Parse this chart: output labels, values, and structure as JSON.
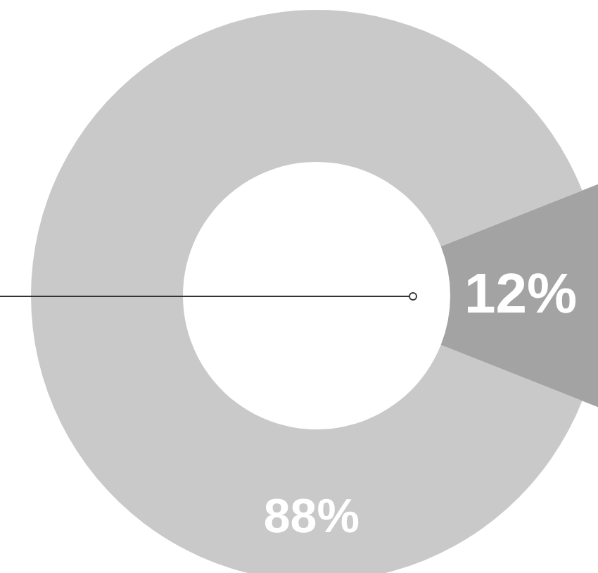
{
  "chart_data": {
    "type": "donut",
    "categories": [
      null,
      null
    ],
    "values": [
      88,
      12
    ],
    "colors": [
      "#c9c9c9",
      "#a3a3a3"
    ],
    "value_labels": [
      "88%",
      "12%"
    ]
  }
}
